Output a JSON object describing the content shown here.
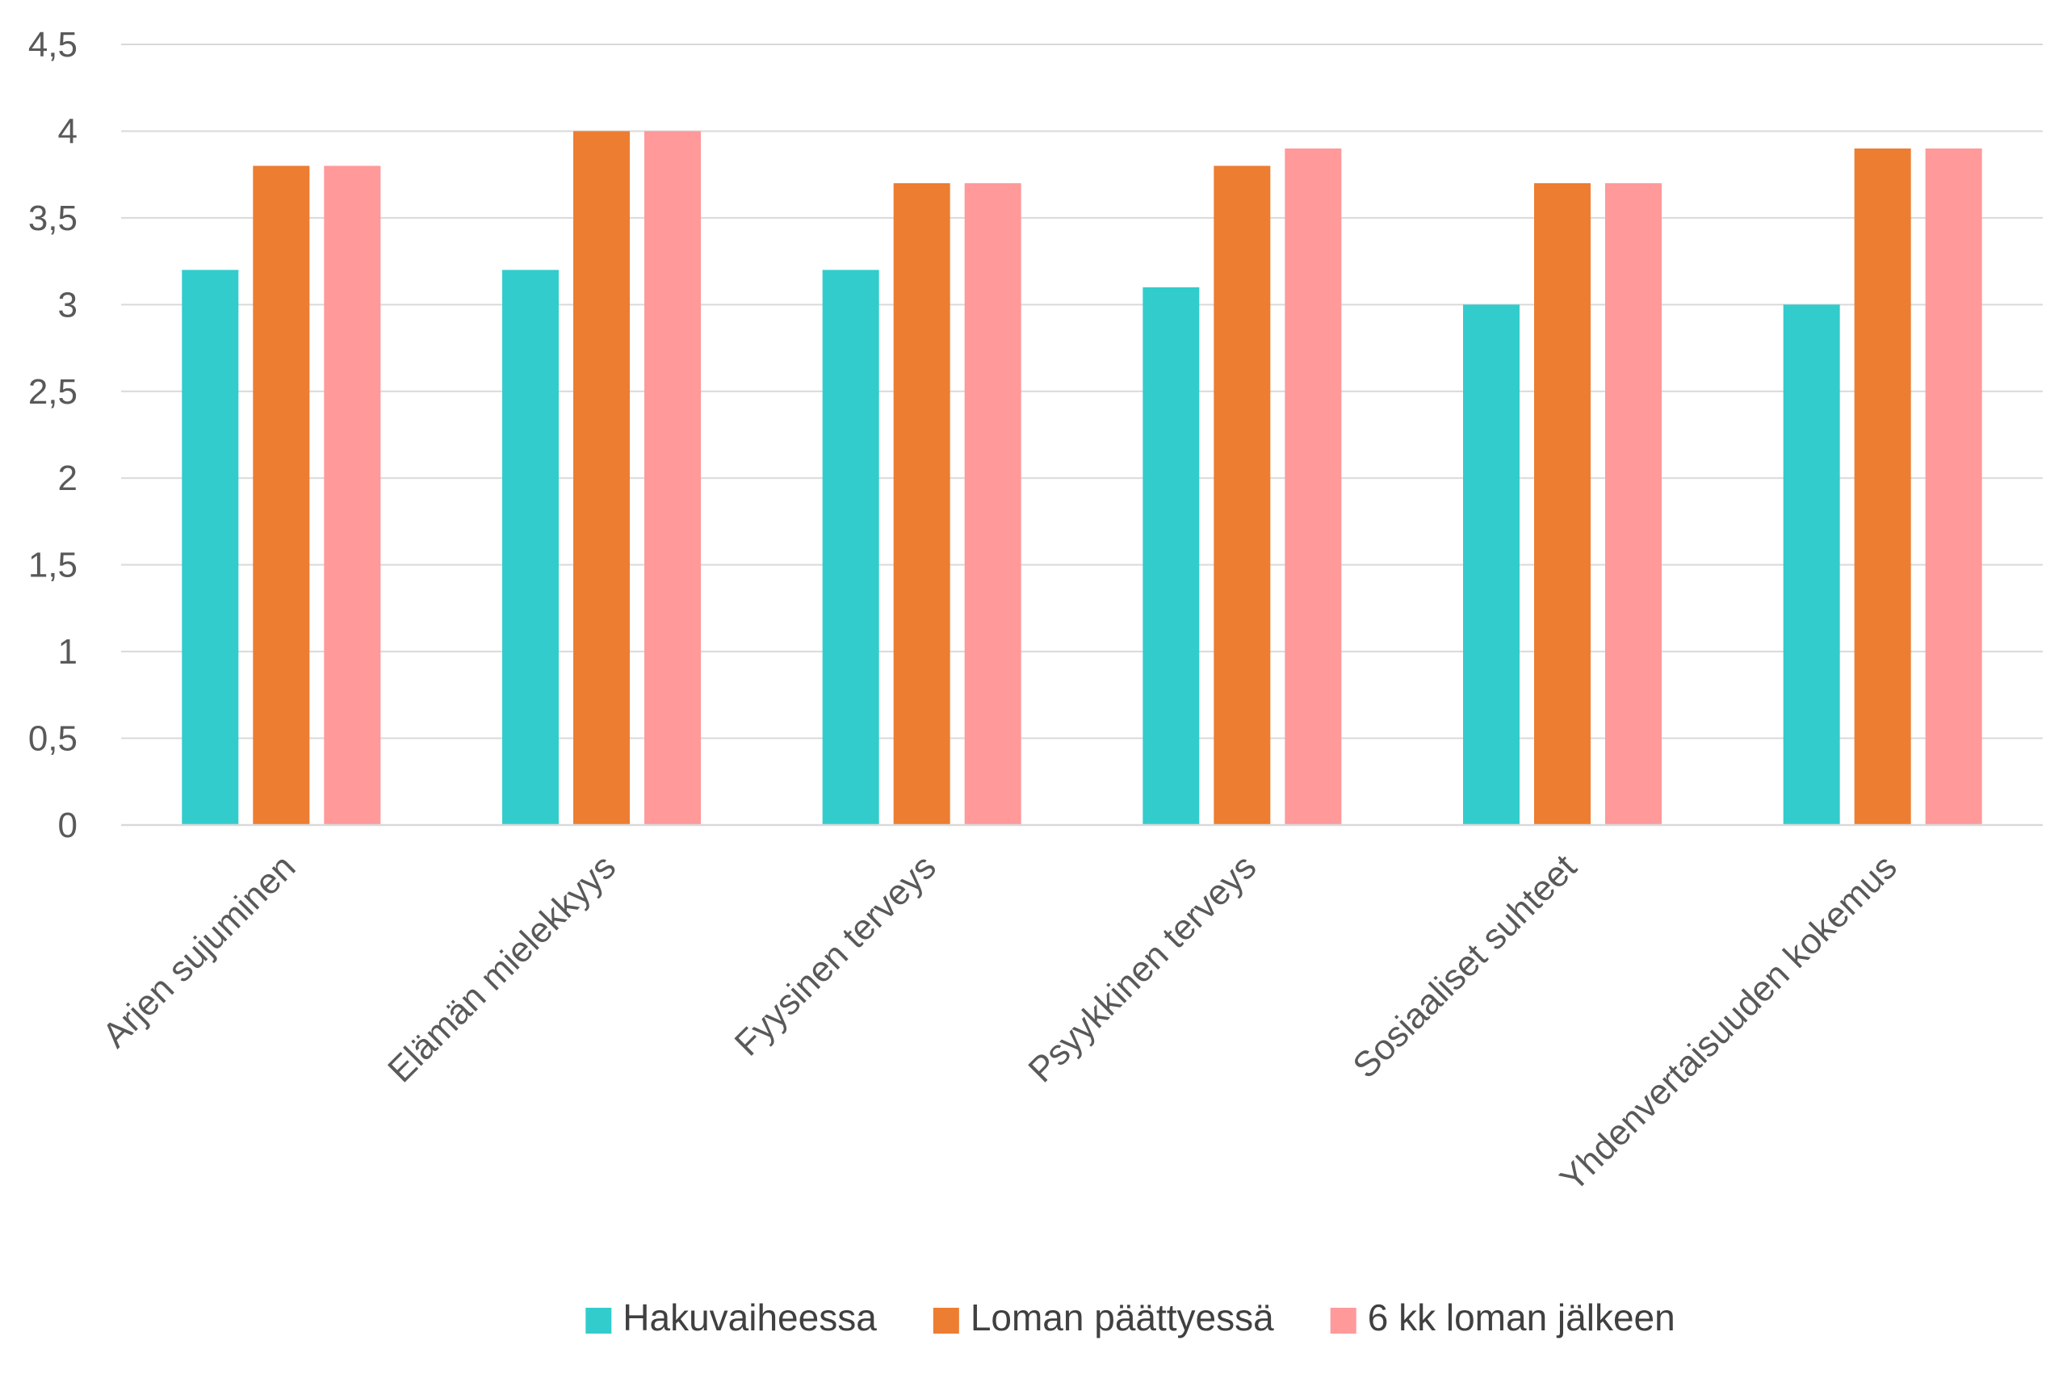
{
  "chart_data": {
    "type": "bar",
    "title": "",
    "xlabel": "",
    "ylabel": "",
    "ylim": [
      0,
      4.5
    ],
    "ytick_step": 0.5,
    "ytick_labels": [
      "0",
      "0,5",
      "1",
      "1,5",
      "2",
      "2,5",
      "3",
      "3,5",
      "4",
      "4,5"
    ],
    "grid": true,
    "legend_position": "bottom",
    "categories": [
      "Arjen sujuminen",
      "Elämän mielekkyys",
      "Fyysinen terveys",
      "Psyykkinen terveys",
      "Sosiaaliset suhteet",
      "Yhdenvertaisuuden kokemus"
    ],
    "series": [
      {
        "name": "Hakuvaiheessa",
        "color": "#33CCCC",
        "values": [
          3.2,
          3.2,
          3.2,
          3.1,
          3.0,
          3.0
        ]
      },
      {
        "name": "Loman päättyessä",
        "color": "#ED7D31",
        "values": [
          3.8,
          4.0,
          3.7,
          3.8,
          3.7,
          3.9
        ]
      },
      {
        "name": "6 kk loman jälkeen",
        "color": "#FF999A",
        "values": [
          3.8,
          4.0,
          3.7,
          3.9,
          3.7,
          3.9
        ]
      }
    ]
  }
}
